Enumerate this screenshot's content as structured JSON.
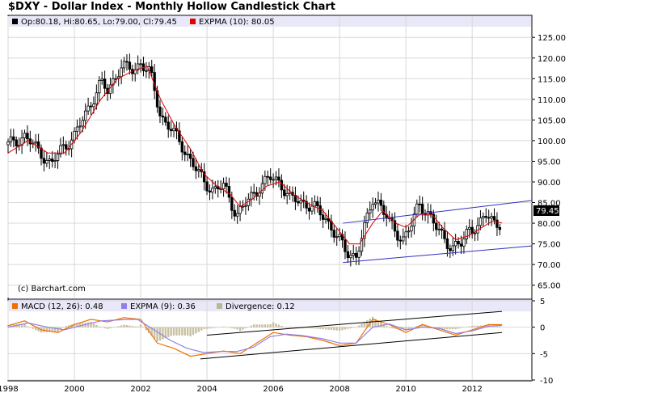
{
  "title": "$DXY - Dollar Index - Monthly Hollow Candlestick Chart",
  "copyright": "(c) Barchart.com",
  "price_legend": [
    {
      "text": "Op:80.18, Hi:80.65, Lo:79.00, Cl:79.45",
      "color": "#000000"
    },
    {
      "text": "EXPMA (10): 80.05",
      "color": "#e00000"
    }
  ],
  "macd_legend": [
    {
      "text": "MACD (12, 26): 0.48",
      "color": "#f07000"
    },
    {
      "text": "EXPMA (9): 0.36",
      "color": "#9080e8"
    },
    {
      "text": "Divergence: 0.12",
      "color": "#b8b898"
    }
  ],
  "last_price_label": "79.45",
  "colors": {
    "band": "#e8e8f8",
    "grid": "#d8d8d8",
    "ema": "#e00000",
    "macd": "#f07000",
    "signal": "#9080e8",
    "divergence": "#c8c0a0",
    "channel": "#3030c0"
  },
  "chart_data": [
    {
      "type": "candlestick",
      "title": "$DXY - Dollar Index - Monthly Hollow Candlestick Chart",
      "x_ticks": [
        "1998",
        "2000",
        "2002",
        "2004",
        "2006",
        "2008",
        "2010",
        "2012"
      ],
      "y_ticks": [
        "65.00",
        "70.00",
        "75.00",
        "80.00",
        "85.00",
        "90.00",
        "95.00",
        "100.00",
        "105.00",
        "110.00",
        "115.00",
        "120.00",
        "125.00"
      ],
      "ylim": [
        62,
        127
      ],
      "xlim": [
        1998.0,
        2013.8
      ],
      "close_path": [
        [
          1998.0,
          99
        ],
        [
          1998.5,
          101
        ],
        [
          1999.0,
          97
        ],
        [
          1999.3,
          94
        ],
        [
          1999.6,
          98
        ],
        [
          2000.0,
          101
        ],
        [
          2000.3,
          106
        ],
        [
          2000.8,
          114
        ],
        [
          2001.0,
          112
        ],
        [
          2001.4,
          118
        ],
        [
          2001.8,
          117
        ],
        [
          2002.0,
          119
        ],
        [
          2002.3,
          116
        ],
        [
          2002.6,
          106
        ],
        [
          2002.9,
          103
        ],
        [
          2003.3,
          98
        ],
        [
          2003.6,
          94
        ],
        [
          2003.9,
          90
        ],
        [
          2004.2,
          88
        ],
        [
          2004.5,
          89
        ],
        [
          2004.9,
          82
        ],
        [
          2005.2,
          85
        ],
        [
          2005.6,
          89
        ],
        [
          2005.9,
          91
        ],
        [
          2006.2,
          90
        ],
        [
          2006.5,
          86
        ],
        [
          2006.9,
          85
        ],
        [
          2007.2,
          84
        ],
        [
          2007.6,
          81
        ],
        [
          2007.9,
          77
        ],
        [
          2008.2,
          73
        ],
        [
          2008.5,
          72
        ],
        [
          2008.8,
          80
        ],
        [
          2009.0,
          86
        ],
        [
          2009.2,
          85
        ],
        [
          2009.5,
          80
        ],
        [
          2009.9,
          76
        ],
        [
          2010.2,
          80
        ],
        [
          2010.4,
          85
        ],
        [
          2010.7,
          82
        ],
        [
          2010.9,
          79
        ],
        [
          2011.2,
          76
        ],
        [
          2011.4,
          74
        ],
        [
          2011.7,
          75
        ],
        [
          2011.9,
          79
        ],
        [
          2012.2,
          79
        ],
        [
          2012.4,
          82
        ],
        [
          2012.6,
          81
        ],
        [
          2012.9,
          79.45
        ]
      ],
      "ema_path": [
        [
          1998.0,
          97
        ],
        [
          1998.6,
          100
        ],
        [
          1999.2,
          97
        ],
        [
          1999.7,
          97
        ],
        [
          2000.2,
          102
        ],
        [
          2000.8,
          110
        ],
        [
          2001.3,
          115
        ],
        [
          2001.8,
          117
        ],
        [
          2002.2,
          118
        ],
        [
          2002.6,
          110
        ],
        [
          2003.0,
          104
        ],
        [
          2003.5,
          98
        ],
        [
          2003.9,
          92
        ],
        [
          2004.3,
          89
        ],
        [
          2004.7,
          87
        ],
        [
          2005.0,
          84
        ],
        [
          2005.4,
          86
        ],
        [
          2005.8,
          89
        ],
        [
          2006.2,
          90
        ],
        [
          2006.6,
          87
        ],
        [
          2007.0,
          85
        ],
        [
          2007.5,
          83
        ],
        [
          2007.9,
          79
        ],
        [
          2008.3,
          75
        ],
        [
          2008.6,
          75
        ],
        [
          2009.0,
          80
        ],
        [
          2009.3,
          83
        ],
        [
          2009.7,
          80
        ],
        [
          2010.0,
          79
        ],
        [
          2010.4,
          82
        ],
        [
          2010.8,
          82
        ],
        [
          2011.1,
          79
        ],
        [
          2011.5,
          76
        ],
        [
          2011.9,
          77
        ],
        [
          2012.3,
          79
        ],
        [
          2012.6,
          80.5
        ],
        [
          2012.9,
          80.05
        ]
      ],
      "channel_upper": [
        [
          2008.1,
          80
        ],
        [
          2013.8,
          85.5
        ]
      ],
      "channel_lower": [
        [
          2008.1,
          70.5
        ],
        [
          2013.8,
          74.5
        ]
      ]
    },
    {
      "type": "line",
      "title": "MACD",
      "y_ticks": [
        "-10",
        "-5",
        "0",
        "5"
      ],
      "ylim": [
        -10,
        5
      ],
      "macd_path": [
        [
          1998.0,
          0.3
        ],
        [
          1998.5,
          1.2
        ],
        [
          1999.0,
          -0.5
        ],
        [
          1999.5,
          -1
        ],
        [
          2000.0,
          0.5
        ],
        [
          2000.5,
          1.5
        ],
        [
          2001.0,
          1.0
        ],
        [
          2001.5,
          1.8
        ],
        [
          2002.0,
          1.5
        ],
        [
          2002.5,
          -3
        ],
        [
          2003.0,
          -4
        ],
        [
          2003.5,
          -5.5
        ],
        [
          2004.0,
          -5
        ],
        [
          2004.5,
          -4.5
        ],
        [
          2005.0,
          -5
        ],
        [
          2005.5,
          -3
        ],
        [
          2006.0,
          -1
        ],
        [
          2006.5,
          -1.5
        ],
        [
          2007.0,
          -1.8
        ],
        [
          2007.5,
          -2.5
        ],
        [
          2008.0,
          -3.5
        ],
        [
          2008.5,
          -3
        ],
        [
          2009.0,
          1.5
        ],
        [
          2009.5,
          0.5
        ],
        [
          2010.0,
          -1
        ],
        [
          2010.5,
          0.5
        ],
        [
          2011.0,
          -0.5
        ],
        [
          2011.5,
          -1.5
        ],
        [
          2012.0,
          -0.5
        ],
        [
          2012.5,
          0.5
        ],
        [
          2012.9,
          0.48
        ]
      ],
      "signal_path": [
        [
          1998.0,
          0.0
        ],
        [
          1998.6,
          0.8
        ],
        [
          1999.2,
          0.0
        ],
        [
          1999.7,
          -0.5
        ],
        [
          2000.2,
          0.3
        ],
        [
          2000.8,
          1.2
        ],
        [
          2001.4,
          1.4
        ],
        [
          2001.9,
          1.5
        ],
        [
          2002.4,
          -0.5
        ],
        [
          2002.9,
          -2.5
        ],
        [
          2003.4,
          -4
        ],
        [
          2003.9,
          -4.8
        ],
        [
          2004.4,
          -4.6
        ],
        [
          2004.9,
          -4.6
        ],
        [
          2005.4,
          -3.8
        ],
        [
          2005.9,
          -1.8
        ],
        [
          2006.4,
          -1.3
        ],
        [
          2006.9,
          -1.6
        ],
        [
          2007.5,
          -2.2
        ],
        [
          2008.0,
          -3
        ],
        [
          2008.5,
          -3
        ],
        [
          2009.0,
          0
        ],
        [
          2009.5,
          0.6
        ],
        [
          2010.0,
          -0.5
        ],
        [
          2010.5,
          0
        ],
        [
          2011.0,
          -0.2
        ],
        [
          2011.5,
          -1.2
        ],
        [
          2012.0,
          -0.7
        ],
        [
          2012.5,
          0.2
        ],
        [
          2012.9,
          0.36
        ]
      ],
      "trend_upper": [
        [
          2004.0,
          -1.5
        ],
        [
          2012.9,
          3.0
        ]
      ],
      "trend_lower": [
        [
          2003.8,
          -6.0
        ],
        [
          2012.9,
          -1.0
        ]
      ]
    }
  ]
}
